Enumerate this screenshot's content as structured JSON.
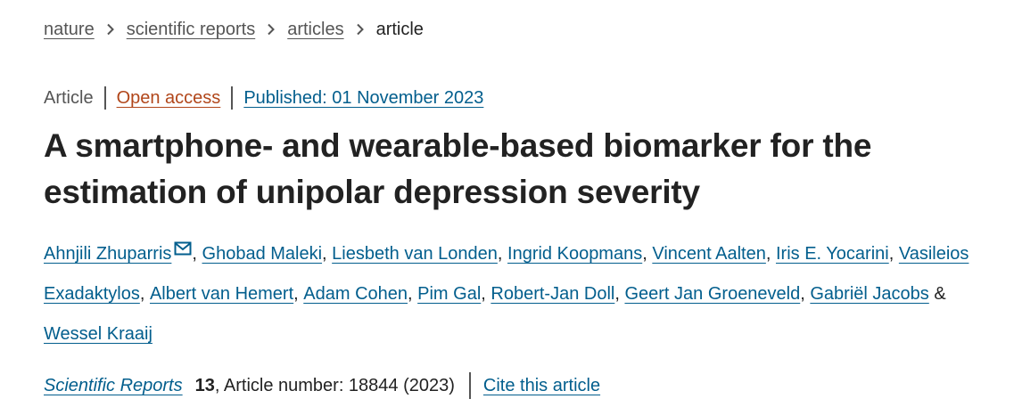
{
  "breadcrumb": {
    "items": [
      {
        "label": "nature"
      },
      {
        "label": "scientific reports"
      },
      {
        "label": "articles"
      }
    ],
    "current": "article"
  },
  "meta": {
    "type": "Article",
    "access": "Open access",
    "published": "Published: 01 November 2023"
  },
  "title": "A smartphone- and wearable-based biomarker for the estimation of unipolar depression severity",
  "authors": [
    "Ahnjili Zhuparris",
    "Ghobad Maleki",
    "Liesbeth van Londen",
    "Ingrid Koopmans",
    "Vincent Aalten",
    "Iris E. Yocarini",
    "Vasileios Exadaktylos",
    "Albert van Hemert",
    "Adam Cohen",
    "Pim Gal",
    "Robert-Jan Doll",
    "Geert Jan Groeneveld",
    "Gabriël Jacobs",
    "Wessel Kraaij"
  ],
  "author_separator": ", ",
  "author_last_separator": " & ",
  "corresponding_icon": "mail-icon",
  "citation": {
    "journal": "Scientific Reports",
    "volume": "13",
    "rest": ", Article number: 18844 (2023)",
    "cite_label": "Cite this article"
  },
  "colors": {
    "link": "#025e8d",
    "open_access": "#b1461a",
    "text": "#222222",
    "muted": "#555555"
  }
}
